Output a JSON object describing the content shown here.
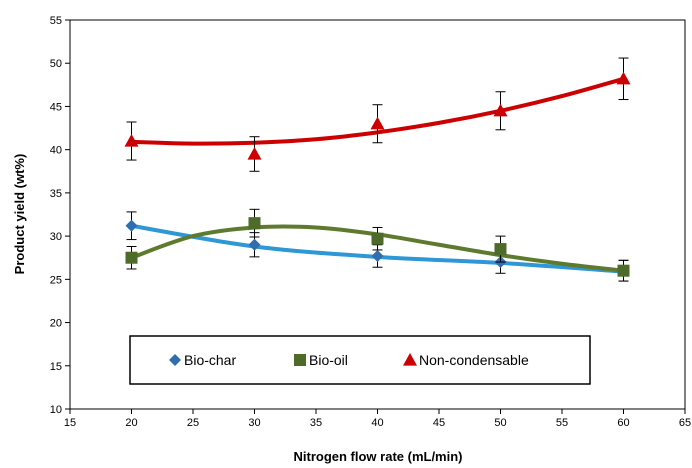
{
  "chart_data": {
    "type": "scatter",
    "title": "",
    "xlabel": "Nitrogen flow rate (mL/min)",
    "ylabel": "Product yield (wt%)",
    "xlim": [
      15,
      65
    ],
    "ylim": [
      10,
      55
    ],
    "xticks": [
      15,
      20,
      25,
      30,
      35,
      40,
      45,
      50,
      55,
      60,
      65
    ],
    "yticks": [
      10,
      15,
      20,
      25,
      30,
      35,
      40,
      45,
      50,
      55
    ],
    "grid": false,
    "legend_position": "bottom-center",
    "x": [
      20,
      30,
      40,
      50,
      60
    ],
    "series": [
      {
        "name": "Bio-char",
        "marker": "diamond",
        "color": "#2f6fb0",
        "line_color": "#2e97d6",
        "values": [
          31.2,
          29.0,
          27.7,
          27.0,
          26.0
        ],
        "error": [
          1.6,
          1.4,
          1.3,
          1.3,
          1.2
        ],
        "trend": [
          [
            20,
            31.2
          ],
          [
            30,
            28.8
          ],
          [
            40,
            27.6
          ],
          [
            50,
            26.9
          ],
          [
            60,
            25.9
          ]
        ]
      },
      {
        "name": "Bio-oil",
        "marker": "square",
        "color": "#4e6b2a",
        "line_color": "#5e7a2e",
        "values": [
          27.5,
          31.5,
          29.7,
          28.5,
          26.0
        ],
        "error": [
          1.3,
          1.6,
          1.3,
          1.5,
          1.2
        ],
        "trend": [
          [
            20,
            27.5
          ],
          [
            25,
            30.0
          ],
          [
            30,
            31.0
          ],
          [
            35,
            31.0
          ],
          [
            40,
            30.2
          ],
          [
            45,
            29.0
          ],
          [
            50,
            27.8
          ],
          [
            55,
            26.8
          ],
          [
            60,
            26.0
          ]
        ]
      },
      {
        "name": "Non-condensable",
        "marker": "triangle",
        "color": "#cc0000",
        "line_color": "#cc0000",
        "values": [
          41.0,
          39.5,
          43.0,
          44.5,
          48.2
        ],
        "error": [
          2.2,
          2.0,
          2.2,
          2.2,
          2.4
        ],
        "trend": [
          [
            20,
            40.9
          ],
          [
            25,
            40.7
          ],
          [
            30,
            40.8
          ],
          [
            35,
            41.2
          ],
          [
            40,
            42.0
          ],
          [
            45,
            43.1
          ],
          [
            50,
            44.5
          ],
          [
            55,
            46.2
          ],
          [
            60,
            48.2
          ]
        ]
      }
    ]
  }
}
